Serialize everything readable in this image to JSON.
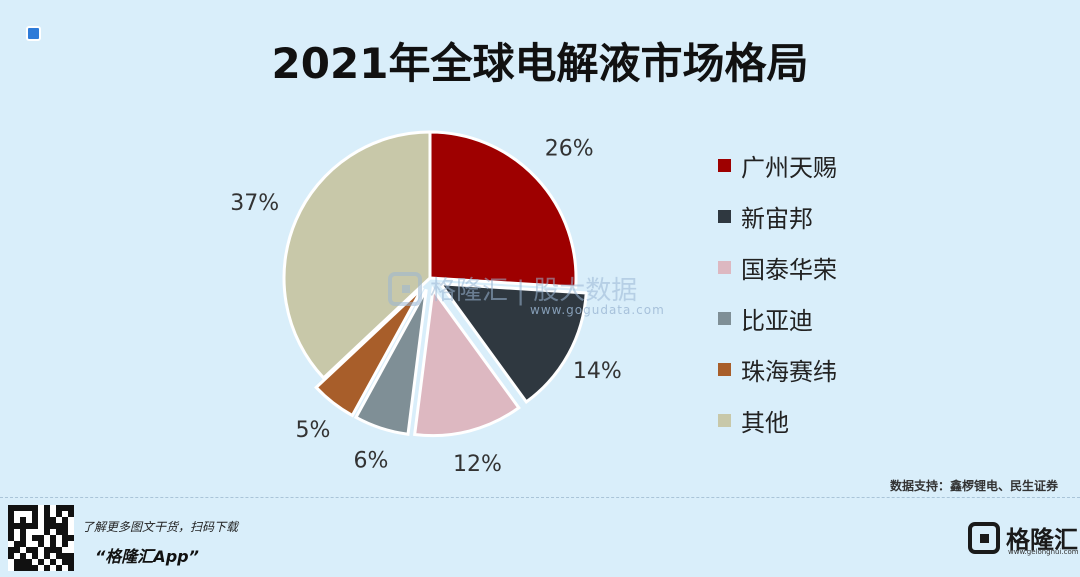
{
  "title": "2021年全球电解液市场格局",
  "chart_data": {
    "type": "pie",
    "slices": [
      {
        "label": "广州天赐",
        "value": 26,
        "value_label": "26%",
        "color": "#9e0000"
      },
      {
        "label": "新宙邦",
        "value": 14,
        "value_label": "14%",
        "color": "#2f3840"
      },
      {
        "label": "国泰华荣",
        "value": 12,
        "value_label": "12%",
        "color": "#ddb8c1"
      },
      {
        "label": "比亚迪",
        "value": 6,
        "value_label": "6%",
        "color": "#7f8f96"
      },
      {
        "label": "珠海赛纬",
        "value": 5,
        "value_label": "5%",
        "color": "#a85e2a"
      },
      {
        "label": "其他",
        "value": 37,
        "value_label": "37%",
        "color": "#c8c8a9"
      }
    ],
    "start_angle": "12 o'clock",
    "direction": "clockwise",
    "legend_position": "right"
  },
  "watermark": {
    "text": "格隆汇 | 股大数据",
    "url": "www.gogudata.com"
  },
  "source": "数据支持：鑫椤锂电、民生证券",
  "footer": {
    "promo_line1": "了解更多图文干货，扫码下载",
    "promo_line2": "“格隆汇App”",
    "brand_name": "格隆汇",
    "brand_url": "www.gelonghui.com"
  }
}
